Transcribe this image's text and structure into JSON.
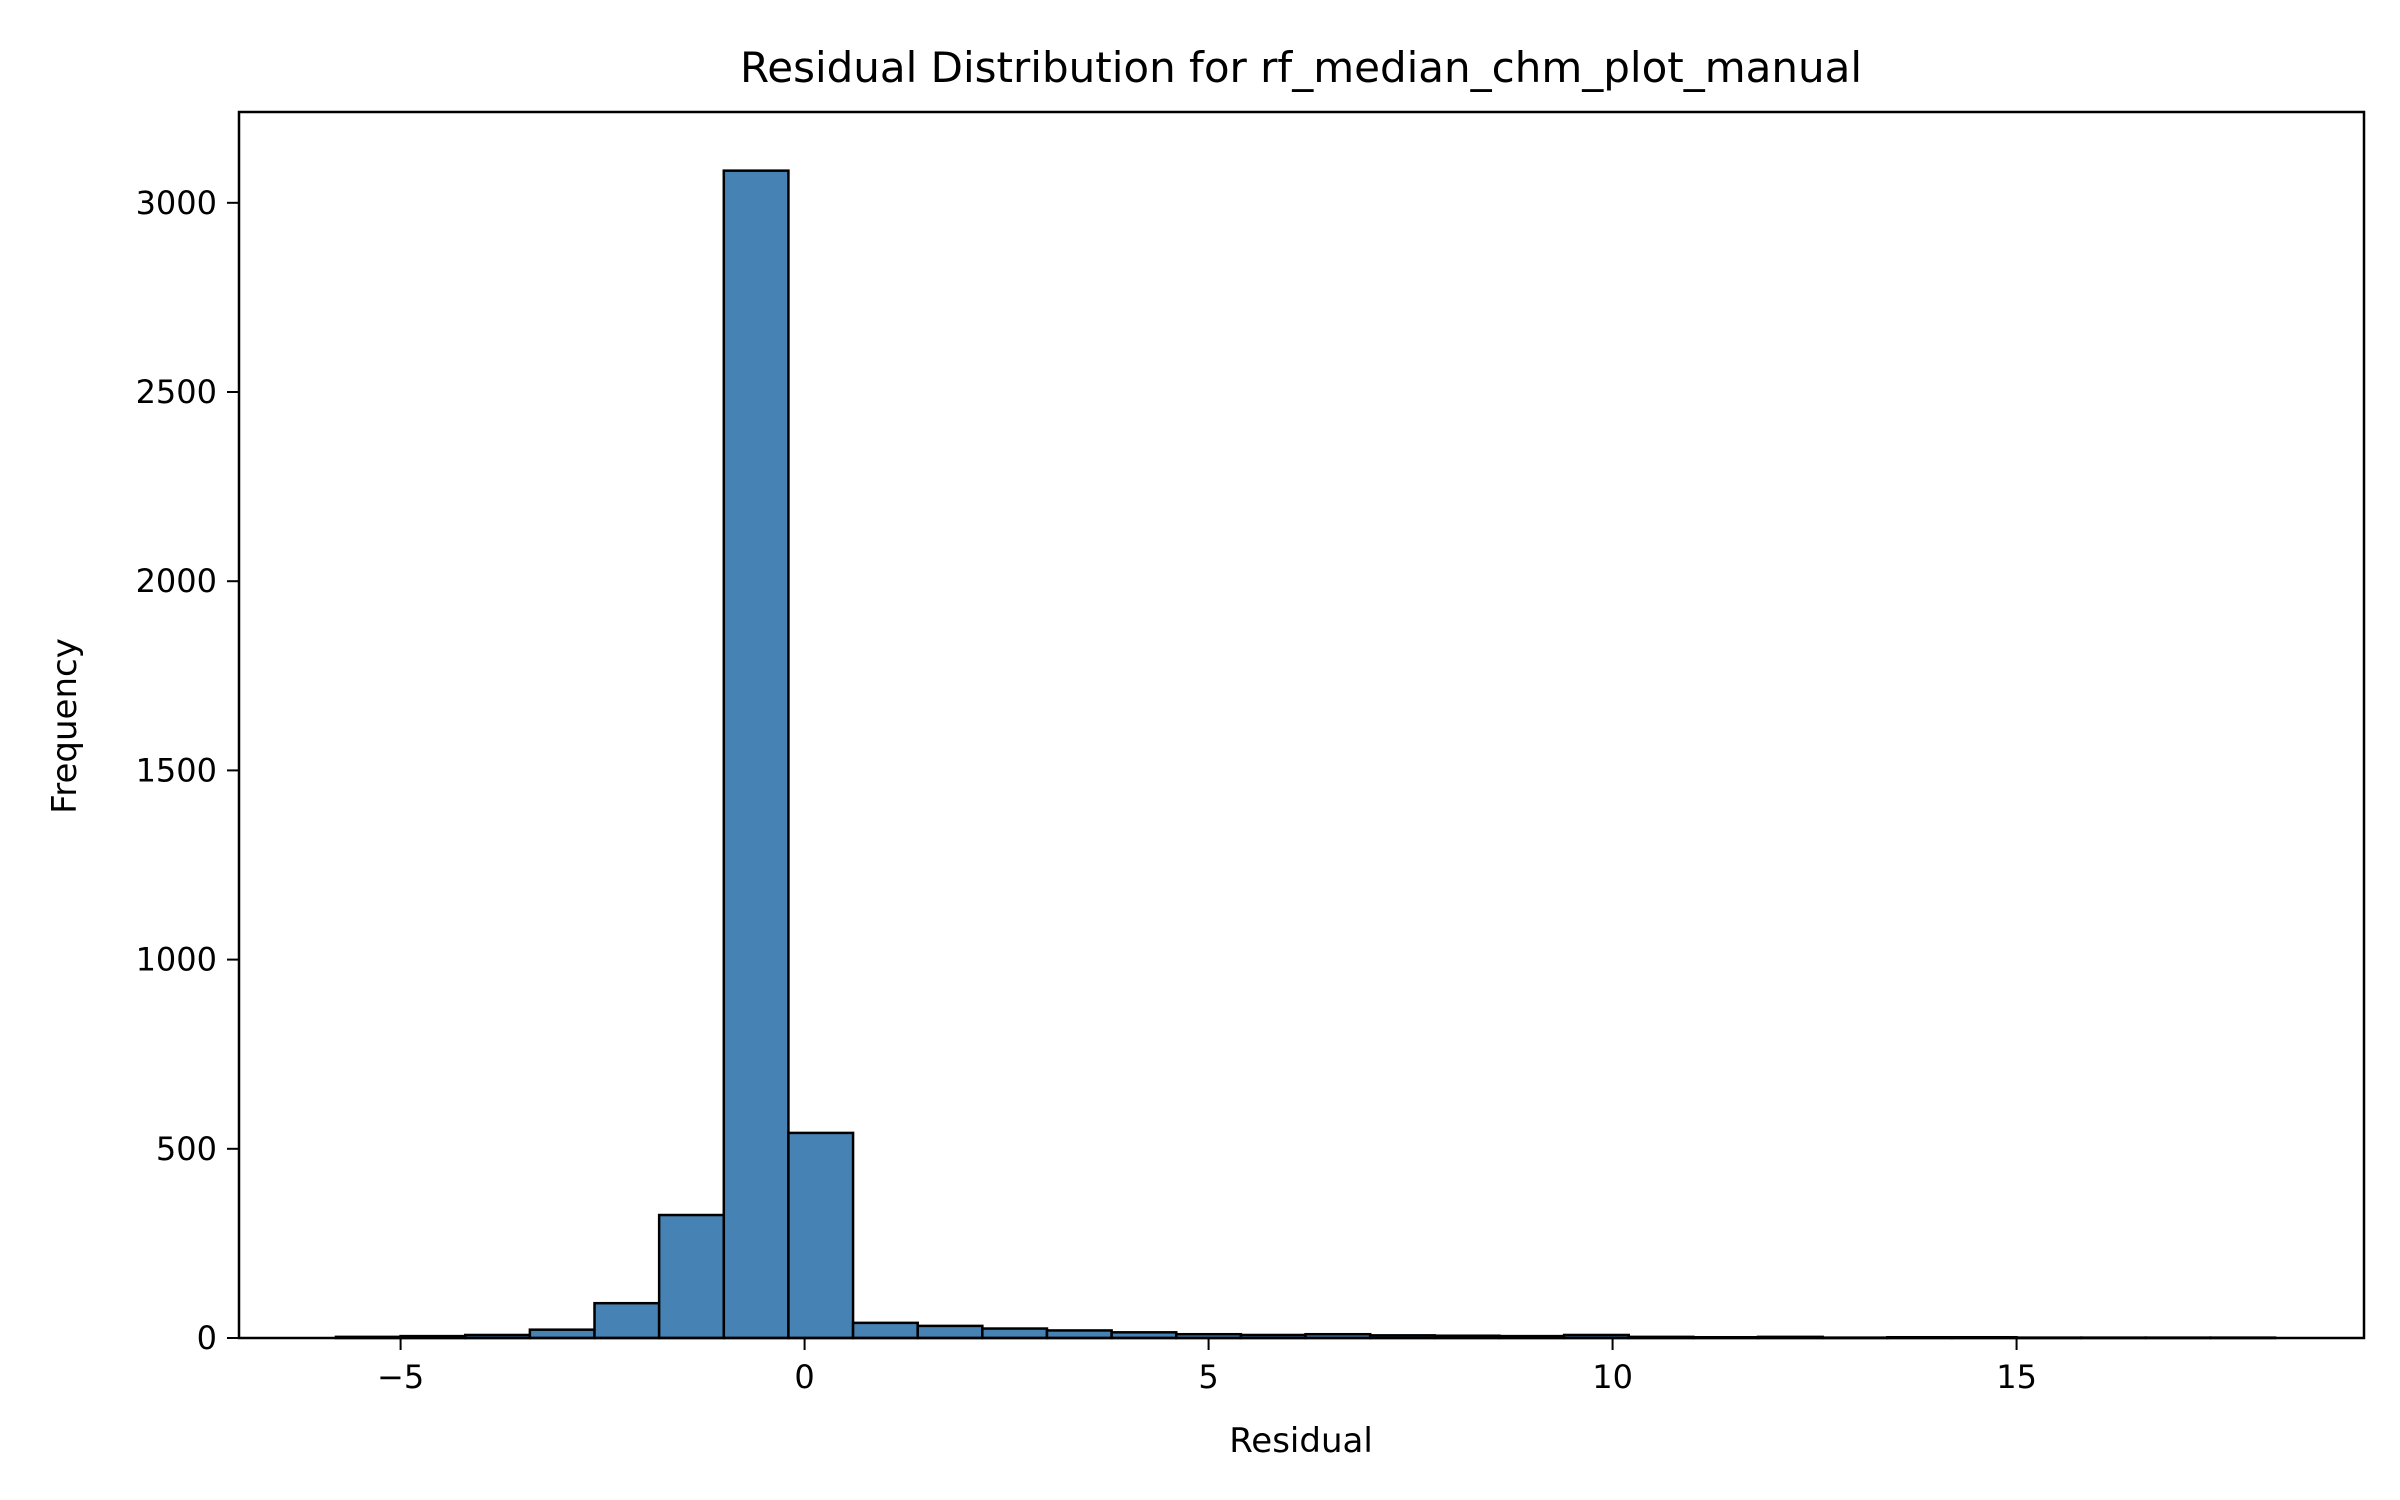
{
  "chart_data": {
    "type": "bar",
    "title": "Residual Distribution for rf_median_chm_plot_manual",
    "xlabel": "Residual",
    "ylabel": "Frequency",
    "xlim": [
      -7.0,
      19.3
    ],
    "ylim": [
      0,
      3240
    ],
    "xticks": [
      -5,
      0,
      5,
      10,
      15
    ],
    "xtick_labels": [
      "−5",
      "0",
      "5",
      "10",
      "15"
    ],
    "yticks": [
      0,
      500,
      1000,
      1500,
      2000,
      2500,
      3000
    ],
    "ytick_labels": [
      "0",
      "500",
      "1000",
      "1500",
      "2000",
      "2500",
      "3000"
    ],
    "bin_edges": [
      -5.8,
      -5.0,
      -4.2,
      -3.4,
      -2.6,
      -1.8,
      -1.0,
      -0.2,
      0.6,
      1.4,
      2.2,
      3.0,
      3.8,
      4.6,
      5.4,
      6.2,
      7.0,
      7.8,
      8.6,
      9.4,
      10.2,
      11.0,
      11.8,
      12.6,
      13.4,
      14.2,
      15.0,
      15.8,
      16.6,
      17.4,
      18.2
    ],
    "values": [
      3,
      5,
      8,
      22,
      92,
      325,
      3085,
      542,
      40,
      32,
      25,
      20,
      15,
      10,
      8,
      10,
      7,
      6,
      5,
      8,
      3,
      2,
      3,
      1,
      2,
      2,
      1,
      1,
      1,
      1
    ],
    "bar_color": "#4682b4",
    "edge_color": "#000000",
    "grid": false,
    "legend": false
  }
}
